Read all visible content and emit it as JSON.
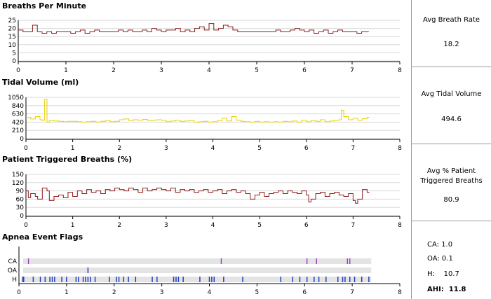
{
  "panels": {
    "breaths": {
      "title": "Breaths Per Minute",
      "yticks": [
        "25",
        "20",
        "15",
        "10",
        "5",
        "0"
      ]
    },
    "tidal": {
      "title": "Tidal Volume (ml)",
      "yticks": [
        "1050",
        "840",
        "630",
        "420",
        "210",
        "0"
      ]
    },
    "patient": {
      "title": "Patient Triggered Breaths (%)",
      "yticks": [
        "150",
        "120",
        "90",
        "60",
        "30",
        "0"
      ]
    },
    "apnea": {
      "title": "Apnea Event Flags",
      "rows": [
        "CA",
        "OA",
        "H"
      ]
    }
  },
  "xticks": [
    "0",
    "1",
    "2",
    "3",
    "4",
    "5",
    "6",
    "7",
    "8"
  ],
  "stats": {
    "breath_rate": {
      "label": "Avg Breath Rate",
      "value": "18.2"
    },
    "tidal_volume": {
      "label": "Avg Tidal Volume",
      "value": "494.6"
    },
    "patient_triggered": {
      "label_line1": "Avg % Patient",
      "label_line2": "Triggered Breaths",
      "value": "80.9"
    },
    "apnea": {
      "ca": "CA:  1.0",
      "oa": "OA:  0.1",
      "h": "H:    10.7",
      "ahi": "AHI:  11.8"
    }
  },
  "colors": {
    "breaths": "#8b1a1a",
    "tidal": "#e8d000",
    "patient": "#8b1a1a",
    "ca": "#a040c0",
    "oa": "#2040c0",
    "h": "#2040c0",
    "grid": "#d8d8d8"
  },
  "chart_data": [
    {
      "type": "line",
      "title": "Breaths Per Minute",
      "xlim": [
        0,
        8
      ],
      "ylim": [
        0,
        25
      ],
      "x": [
        0.0,
        0.1,
        0.2,
        0.3,
        0.4,
        0.5,
        0.6,
        0.7,
        0.8,
        0.9,
        1.0,
        1.1,
        1.2,
        1.3,
        1.4,
        1.5,
        1.6,
        1.7,
        1.8,
        1.9,
        2.0,
        2.1,
        2.2,
        2.3,
        2.4,
        2.5,
        2.6,
        2.7,
        2.8,
        2.9,
        3.0,
        3.1,
        3.2,
        3.3,
        3.4,
        3.5,
        3.6,
        3.7,
        3.8,
        3.9,
        4.0,
        4.1,
        4.2,
        4.3,
        4.4,
        4.5,
        4.6,
        4.7,
        4.8,
        4.9,
        5.0,
        5.1,
        5.2,
        5.3,
        5.4,
        5.5,
        5.6,
        5.7,
        5.8,
        5.9,
        6.0,
        6.1,
        6.2,
        6.3,
        6.4,
        6.5,
        6.6,
        6.7,
        6.8,
        6.9,
        7.0,
        7.1,
        7.2,
        7.3
      ],
      "y": [
        19,
        18,
        18,
        22,
        18,
        17,
        18,
        17,
        18,
        18,
        18,
        17,
        18,
        19,
        17,
        18,
        19,
        18,
        18,
        18,
        18,
        19,
        18,
        19,
        18,
        18,
        19,
        18,
        20,
        19,
        18,
        19,
        19,
        20,
        18,
        19,
        18,
        20,
        21,
        19,
        23,
        19,
        20,
        22,
        21,
        19,
        18,
        18,
        18,
        18,
        18,
        18,
        18,
        18,
        19,
        18,
        18,
        19,
        20,
        19,
        18,
        19,
        17,
        18,
        19,
        17,
        18,
        19,
        18,
        18,
        18,
        17,
        18,
        18
      ],
      "series_color": "#8b1a1a"
    },
    {
      "type": "line",
      "title": "Tidal Volume (ml)",
      "xlim": [
        0,
        8
      ],
      "ylim": [
        0,
        1050
      ],
      "x": [
        0.0,
        0.1,
        0.2,
        0.3,
        0.35,
        0.4,
        0.45,
        0.5,
        0.6,
        0.7,
        0.8,
        0.9,
        1.0,
        1.1,
        1.2,
        1.3,
        1.4,
        1.5,
        1.6,
        1.7,
        1.8,
        1.9,
        2.0,
        2.1,
        2.2,
        2.3,
        2.4,
        2.5,
        2.6,
        2.7,
        2.8,
        2.9,
        3.0,
        3.1,
        3.2,
        3.3,
        3.4,
        3.5,
        3.6,
        3.7,
        3.8,
        3.9,
        4.0,
        4.1,
        4.2,
        4.3,
        4.4,
        4.5,
        4.6,
        4.7,
        4.8,
        4.9,
        5.0,
        5.1,
        5.2,
        5.3,
        5.4,
        5.5,
        5.6,
        5.7,
        5.8,
        5.9,
        6.0,
        6.1,
        6.2,
        6.3,
        6.4,
        6.5,
        6.6,
        6.7,
        6.75,
        6.8,
        6.9,
        7.0,
        7.1,
        7.2,
        7.3
      ],
      "y": [
        540,
        500,
        560,
        480,
        470,
        1000,
        420,
        460,
        450,
        440,
        430,
        440,
        440,
        430,
        420,
        430,
        440,
        420,
        440,
        460,
        430,
        440,
        480,
        500,
        460,
        480,
        470,
        490,
        460,
        470,
        480,
        470,
        430,
        450,
        470,
        440,
        450,
        460,
        420,
        430,
        440,
        420,
        430,
        460,
        520,
        450,
        560,
        470,
        440,
        430,
        420,
        440,
        420,
        430,
        420,
        430,
        420,
        440,
        430,
        450,
        420,
        470,
        430,
        460,
        440,
        480,
        430,
        450,
        470,
        480,
        720,
        560,
        480,
        520,
        470,
        510,
        540
      ],
      "series_color": "#e8d000"
    },
    {
      "type": "line",
      "title": "Patient Triggered Breaths (%)",
      "xlim": [
        0,
        8
      ],
      "ylim": [
        0,
        150
      ],
      "x": [
        0.0,
        0.05,
        0.1,
        0.2,
        0.25,
        0.35,
        0.45,
        0.5,
        0.6,
        0.7,
        0.8,
        0.9,
        1.0,
        1.1,
        1.2,
        1.3,
        1.4,
        1.5,
        1.6,
        1.7,
        1.8,
        1.9,
        2.0,
        2.1,
        2.2,
        2.3,
        2.4,
        2.5,
        2.6,
        2.7,
        2.8,
        2.9,
        3.0,
        3.1,
        3.2,
        3.3,
        3.4,
        3.5,
        3.6,
        3.7,
        3.8,
        3.9,
        4.0,
        4.1,
        4.2,
        4.3,
        4.4,
        4.5,
        4.6,
        4.7,
        4.8,
        4.9,
        5.0,
        5.1,
        5.2,
        5.3,
        5.4,
        5.5,
        5.6,
        5.7,
        5.8,
        5.9,
        6.0,
        6.05,
        6.1,
        6.2,
        6.3,
        6.4,
        6.5,
        6.6,
        6.7,
        6.8,
        6.9,
        7.0,
        7.05,
        7.1,
        7.2,
        7.3
      ],
      "y": [
        90,
        65,
        80,
        70,
        60,
        100,
        90,
        55,
        70,
        75,
        65,
        85,
        70,
        90,
        80,
        95,
        85,
        90,
        80,
        95,
        90,
        100,
        95,
        90,
        100,
        95,
        85,
        100,
        90,
        95,
        100,
        95,
        90,
        100,
        85,
        95,
        90,
        95,
        85,
        90,
        95,
        85,
        90,
        95,
        80,
        90,
        95,
        85,
        90,
        80,
        60,
        75,
        85,
        70,
        80,
        85,
        90,
        80,
        90,
        85,
        80,
        90,
        75,
        50,
        60,
        80,
        85,
        70,
        80,
        85,
        75,
        70,
        80,
        55,
        45,
        60,
        95,
        85
      ],
      "series_color": "#8b1a1a"
    },
    {
      "type": "scatter",
      "title": "Apnea Event Flags",
      "xlim": [
        0,
        8
      ],
      "rows": [
        "CA",
        "OA",
        "H"
      ],
      "events": {
        "CA": [
          0.2,
          4.25,
          6.05,
          6.25,
          6.9,
          6.95
        ],
        "OA": [
          1.45
        ],
        "H": [
          0.07,
          0.1,
          0.3,
          0.45,
          0.55,
          0.65,
          0.7,
          0.75,
          0.9,
          1.0,
          1.2,
          1.25,
          1.35,
          1.4,
          1.45,
          1.5,
          1.6,
          1.9,
          2.05,
          2.1,
          2.2,
          2.3,
          2.45,
          2.8,
          2.9,
          3.25,
          3.3,
          3.35,
          3.45,
          3.8,
          4.0,
          4.05,
          4.1,
          4.3,
          4.7,
          5.5,
          5.75,
          5.9,
          6.05,
          6.2,
          6.3,
          6.45,
          6.7,
          6.8,
          6.85,
          6.95,
          7.05,
          7.2,
          7.35
        ]
      }
    }
  ]
}
